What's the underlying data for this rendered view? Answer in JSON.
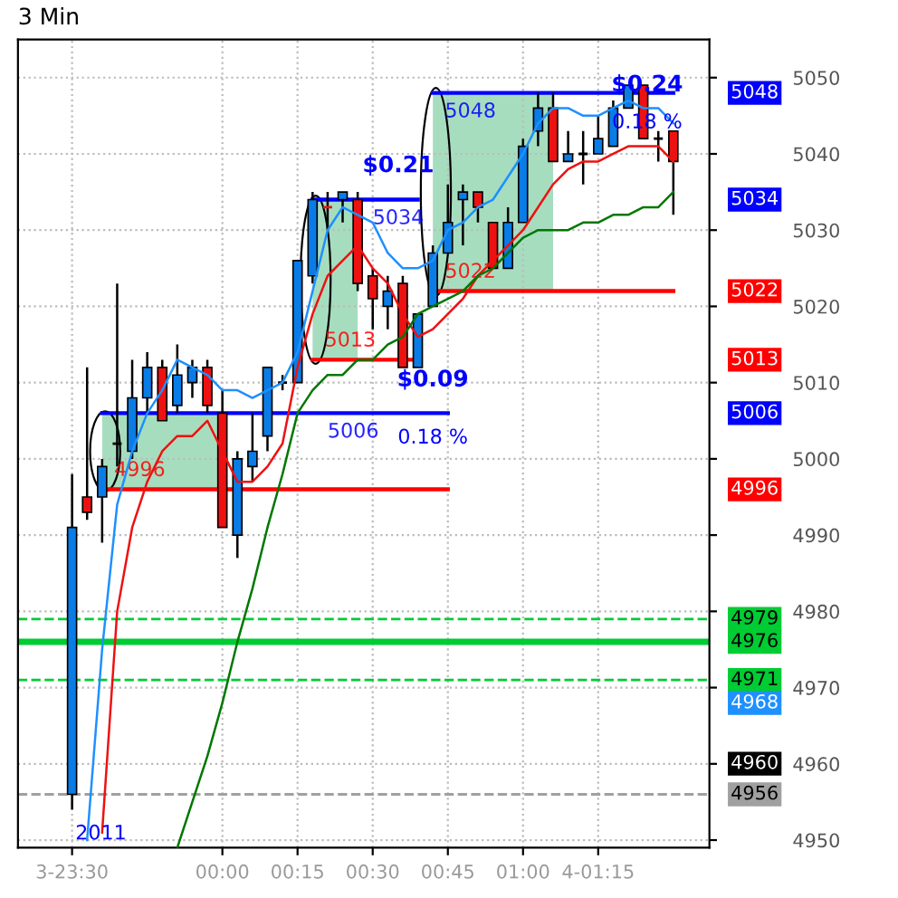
{
  "chart_data": {
    "type": "candlestick",
    "title": "3 Min",
    "categories": [
      "3-23:30",
      null,
      null,
      null,
      null,
      null,
      null,
      null,
      null,
      null,
      "00:00",
      null,
      null,
      null,
      null,
      "00:15",
      null,
      null,
      null,
      null,
      "00:30",
      null,
      null,
      null,
      null,
      "00:45",
      null,
      null,
      null,
      null,
      "01:00",
      null,
      null,
      null,
      null,
      "4-01:15",
      null,
      null,
      null,
      null,
      null
    ],
    "ohlc": [
      [
        4956,
        4998,
        4954,
        4991
      ],
      [
        4995,
        5012,
        4992,
        4993
      ],
      [
        4995,
        5000,
        4989,
        4999
      ],
      [
        5002,
        5023,
        4999,
        5002
      ],
      [
        5001,
        5013,
        5000,
        5008
      ],
      [
        5008,
        5014,
        5006,
        5012
      ],
      [
        5012,
        5013,
        5005,
        5005
      ],
      [
        5007,
        5015,
        5006,
        5011
      ],
      [
        5010,
        5013,
        5008,
        5012
      ],
      [
        5012,
        5013,
        5006,
        5007
      ],
      [
        5006,
        5009,
        4991,
        4991
      ],
      [
        4990,
        5001,
        4987,
        5000
      ],
      [
        4999,
        5006,
        4997,
        5001
      ],
      [
        5003,
        5012,
        5001,
        5012
      ],
      [
        5010,
        5011,
        5009,
        5010
      ],
      [
        5010,
        5026,
        5010,
        5026
      ],
      [
        5024,
        5035,
        5023,
        5034
      ],
      [
        5033,
        5035,
        5030,
        5033
      ],
      [
        5034,
        5035,
        5031,
        5035
      ],
      [
        5034,
        5035,
        5022,
        5023
      ],
      [
        5024,
        5025,
        5017,
        5021
      ],
      [
        5020,
        5024,
        5017,
        5022
      ],
      [
        5023,
        5024,
        5012,
        5012
      ],
      [
        5012,
        5019,
        5012,
        5019
      ],
      [
        5020,
        5028,
        5020,
        5027
      ],
      [
        5027,
        5036,
        5027,
        5031
      ],
      [
        5034,
        5036,
        5028,
        5035
      ],
      [
        5035,
        5035,
        5031,
        5033
      ],
      [
        5031,
        5031,
        5025,
        5025
      ],
      [
        5025,
        5033,
        5025,
        5031
      ],
      [
        5031,
        5042,
        5031,
        5041
      ],
      [
        5043,
        5048,
        5041,
        5046
      ],
      [
        5046,
        5048,
        5039,
        5039
      ],
      [
        5039,
        5043,
        5039,
        5040
      ],
      [
        5040,
        5043,
        5036,
        5040
      ],
      [
        5040,
        5045,
        5040,
        5042
      ],
      [
        5041,
        5047,
        5041,
        5046
      ],
      [
        5046,
        5049,
        5046,
        5049
      ],
      [
        5049,
        5049,
        5042,
        5042
      ],
      [
        5042,
        5043,
        5039,
        5042
      ],
      [
        5043,
        5043,
        5032,
        5039
      ]
    ],
    "colors": [
      "#0a7ce6",
      "#ee1111",
      "#0a7ce6",
      "#000000",
      "#0a7ce6",
      "#0a7ce6",
      "#ee1111",
      "#0a7ce6",
      "#0a7ce6",
      "#ee1111",
      "#ee1111",
      "#0a7ce6",
      "#0a7ce6",
      "#0a7ce6",
      "#000000",
      "#0a7ce6",
      "#0a7ce6",
      "#ee1111",
      "#0a7ce6",
      "#ee1111",
      "#ee1111",
      "#0a7ce6",
      "#ee1111",
      "#0a7ce6",
      "#0a7ce6",
      "#0a7ce6",
      "#0a7ce6",
      "#ee1111",
      "#ee1111",
      "#0a7ce6",
      "#0a7ce6",
      "#0a7ce6",
      "#ee1111",
      "#0a7ce6",
      "#000000",
      "#0a7ce6",
      "#0a7ce6",
      "#0a7ce6",
      "#ee1111",
      "#000000",
      "#ee1111"
    ],
    "series": [
      {
        "type": "line",
        "color": "#1e90ff",
        "values": [
          null,
          4950,
          4975,
          4994,
          5001,
          5006,
          5009,
          5013,
          5012,
          5011,
          5009,
          5009,
          5008,
          5009,
          5010,
          5014,
          5022,
          5030,
          5033,
          5032,
          5031,
          5027,
          5025,
          5025,
          5026,
          5030,
          5031,
          5033,
          5034,
          5037,
          5040,
          5044,
          5046,
          5046,
          5045,
          5045,
          5046,
          5047,
          5046,
          5046,
          5044
        ]
      },
      {
        "type": "line",
        "color": "#ee1111",
        "values": [
          null,
          null,
          4951,
          4980,
          4991,
          4997,
          5001,
          5003,
          5003,
          5005,
          5001,
          4997,
          4997,
          4999,
          5002,
          5012,
          5019,
          5024,
          5026,
          5028,
          5025,
          5023,
          5019,
          5016,
          5017,
          5019,
          5021,
          5024,
          5026,
          5028,
          5030,
          5033,
          5036,
          5038,
          5039,
          5039,
          5040,
          5041,
          5041,
          5041,
          5039
        ]
      },
      {
        "type": "line",
        "color": "#007700",
        "values": [
          null,
          null,
          null,
          null,
          null,
          null,
          null,
          4949,
          4955,
          4961,
          4968,
          4976,
          4983,
          4991,
          4998,
          5006,
          5009,
          5011,
          5011,
          5013,
          5013,
          5015,
          5016,
          5019,
          5020,
          5021,
          5022,
          5024,
          5025,
          5027,
          5029,
          5030,
          5030,
          5030,
          5031,
          5031,
          5032,
          5032,
          5033,
          5033,
          5035
        ]
      },
      {
        "type": "line",
        "name": "5006",
        "color": "#0000ff",
        "values": [
          null,
          null,
          5006,
          5006,
          5006,
          5006,
          5006,
          5006,
          5006,
          5006,
          5006,
          5006,
          5006,
          5006,
          5006,
          5006,
          5006,
          5006,
          5006,
          5006,
          5006,
          5006,
          5006,
          5006,
          5006,
          5006,
          null,
          null,
          null,
          null,
          null,
          null,
          null,
          null,
          null,
          null,
          null,
          null,
          null,
          null,
          null
        ],
        "lower": [
          null,
          null,
          4996,
          4996,
          4996,
          4996,
          4996,
          4996,
          4996,
          4996,
          4996,
          null,
          null,
          null,
          null,
          null,
          null,
          null,
          null,
          null,
          null,
          null,
          null,
          null,
          null,
          null,
          null,
          null,
          null,
          null,
          null,
          null,
          null,
          null,
          null,
          null,
          null,
          null,
          null,
          null,
          null
        ],
        "upper": [
          null,
          null,
          5006,
          5006,
          5006,
          5006,
          5006,
          5006,
          5006,
          5006,
          5006,
          null,
          null,
          null,
          null,
          null,
          null,
          null,
          null,
          null,
          null,
          null,
          null,
          null,
          null,
          null,
          null,
          null,
          null,
          null,
          null,
          null,
          null,
          null,
          null,
          null,
          null,
          null,
          null,
          null,
          null
        ]
      },
      {
        "type": "line",
        "name": "4996",
        "color": "#ff0000",
        "values": [
          null,
          null,
          4996,
          4996,
          4996,
          4996,
          4996,
          4996,
          4996,
          4996,
          4996,
          4996,
          4996,
          4996,
          4996,
          4996,
          4996,
          4996,
          4996,
          4996,
          4996,
          4996,
          4996,
          4996,
          4996,
          4996,
          null,
          null,
          null,
          null,
          null,
          null,
          null,
          null,
          null,
          null,
          null,
          null,
          null,
          null,
          null
        ]
      },
      {
        "type": "line",
        "name": "5034",
        "color": "#0000ff",
        "values": [
          null,
          null,
          null,
          null,
          null,
          null,
          null,
          null,
          null,
          null,
          null,
          null,
          null,
          null,
          null,
          null,
          5034,
          5034,
          5034,
          5034,
          5034,
          5034,
          5034,
          5034,
          null,
          null,
          null,
          null,
          null,
          null,
          null,
          null,
          null,
          null,
          null,
          null,
          null,
          null,
          null,
          null,
          null
        ],
        "lower": [
          null,
          null,
          null,
          null,
          null,
          null,
          null,
          null,
          null,
          null,
          null,
          null,
          null,
          null,
          null,
          null,
          5013,
          5013,
          5013,
          5013,
          null,
          null,
          null,
          null,
          null,
          null,
          null,
          null,
          null,
          null,
          null,
          null,
          null,
          null,
          null,
          null,
          null,
          null,
          null,
          null,
          null
        ],
        "upper": [
          null,
          null,
          null,
          null,
          null,
          null,
          null,
          null,
          null,
          null,
          null,
          null,
          null,
          null,
          null,
          null,
          5034,
          5034,
          5034,
          5034,
          null,
          null,
          null,
          null,
          null,
          null,
          null,
          null,
          null,
          null,
          null,
          null,
          null,
          null,
          null,
          null,
          null,
          null,
          null,
          null,
          null
        ]
      },
      {
        "type": "line",
        "name": "5013",
        "color": "#ff0000",
        "values": [
          null,
          null,
          null,
          null,
          null,
          null,
          null,
          null,
          null,
          null,
          null,
          null,
          null,
          null,
          null,
          null,
          5013,
          5013,
          5013,
          5013,
          5013,
          5013,
          5013,
          5013,
          null,
          null,
          null,
          null,
          null,
          null,
          null,
          null,
          null,
          null,
          null,
          null,
          null,
          null,
          null,
          null,
          null
        ]
      },
      {
        "type": "line",
        "name": "5048",
        "color": "#0000ff",
        "values": [
          null,
          null,
          null,
          null,
          null,
          null,
          null,
          null,
          null,
          null,
          null,
          null,
          null,
          null,
          null,
          null,
          null,
          null,
          null,
          null,
          null,
          null,
          null,
          null,
          5048,
          5048,
          5048,
          5048,
          5048,
          5048,
          5048,
          5048,
          5048,
          5048,
          5048,
          5048,
          5048,
          5048,
          5048,
          5048,
          5048
        ],
        "lower": [
          null,
          null,
          null,
          null,
          null,
          null,
          null,
          null,
          null,
          null,
          null,
          null,
          null,
          null,
          null,
          null,
          null,
          null,
          null,
          null,
          null,
          null,
          null,
          null,
          5022,
          5022,
          5022,
          5022,
          5022,
          5022,
          5022,
          5022,
          5022,
          null,
          null,
          null,
          null,
          null,
          null,
          null,
          null
        ],
        "upper": [
          null,
          null,
          null,
          null,
          null,
          null,
          null,
          null,
          null,
          null,
          null,
          null,
          null,
          null,
          null,
          null,
          null,
          null,
          null,
          null,
          null,
          null,
          null,
          null,
          5048,
          5048,
          5048,
          5048,
          5048,
          5048,
          5048,
          5048,
          5048,
          null,
          null,
          null,
          null,
          null,
          null,
          null,
          null
        ]
      },
      {
        "type": "line",
        "name": "5022",
        "color": "#ff0000",
        "values": [
          null,
          null,
          null,
          null,
          null,
          null,
          null,
          null,
          null,
          null,
          null,
          null,
          null,
          null,
          null,
          null,
          null,
          null,
          null,
          null,
          null,
          null,
          null,
          null,
          5022,
          5022,
          5022,
          5022,
          5022,
          5022,
          5022,
          5022,
          5022,
          5022,
          5022,
          5022,
          5022,
          5022,
          5022,
          5022,
          5022
        ]
      }
    ],
    "ref_lines": [
      {
        "axis": "y",
        "value": 4979,
        "label": "4979",
        "color": "#00cc33",
        "line_style": "dashed"
      },
      {
        "axis": "y",
        "value": 4976,
        "label": "4976",
        "color": "#00cc33",
        "line_style": "solid"
      },
      {
        "axis": "y",
        "value": 4971,
        "label": "4971",
        "color": "#00cc33",
        "line_style": "dashed"
      },
      {
        "axis": "y",
        "value": 4956,
        "label": "4956",
        "color": "#a0a0a0",
        "line_style": "dashed"
      }
    ],
    "annotations": [
      "$0.09",
      "0.18 %",
      "$0.21",
      "$0.24",
      "0.18 %",
      "2011",
      "4968",
      "4960"
    ],
    "ylim": [
      4949,
      5055
    ],
    "yticks": [
      4950,
      4960,
      4970,
      4980,
      4990,
      5000,
      5010,
      5020,
      5030,
      5040,
      5050
    ],
    "grid": true,
    "line_style": "solid",
    "marker": "none"
  }
}
